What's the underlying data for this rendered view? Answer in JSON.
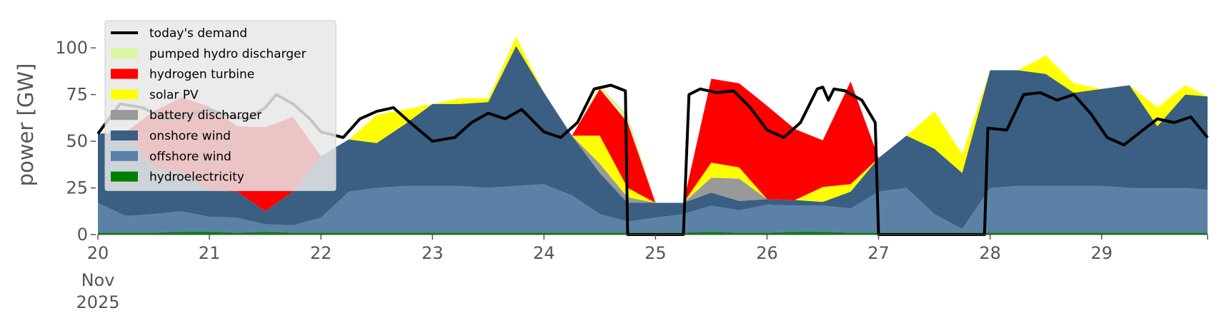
{
  "chart_data": {
    "type": "area",
    "ylabel": "power [GW]",
    "ylim": [
      0,
      118
    ],
    "yticks": [
      "0",
      "25",
      "50",
      "75",
      "100"
    ],
    "xlim": [
      0,
      9.95
    ],
    "xticks": [
      "20",
      "21",
      "22",
      "23",
      "24",
      "25",
      "26",
      "27",
      "28",
      "29"
    ],
    "x_month": "Nov",
    "x_year": "2025",
    "grid": false,
    "legend_position": "top-left",
    "x": [
      0,
      0.25,
      0.5,
      0.75,
      1,
      1.25,
      1.5,
      1.75,
      2,
      2.25,
      2.5,
      2.75,
      3,
      3.25,
      3.5,
      3.75,
      4,
      4.25,
      4.5,
      4.75,
      5,
      5.25,
      5.5,
      5.75,
      6,
      6.25,
      6.5,
      6.75,
      7,
      7.25,
      7.5,
      7.75,
      8,
      8.25,
      8.5,
      8.75,
      9,
      9.25,
      9.5,
      9.75,
      9.95
    ],
    "stack_series": [
      {
        "name": "hydroelectricity",
        "color": "#008000",
        "values": [
          1,
          1,
          1,
          1.5,
          1.5,
          1,
          1.5,
          1,
          1,
          1,
          1,
          1,
          1,
          1,
          1,
          1,
          1,
          1,
          1,
          1,
          1,
          1,
          1.5,
          1,
          1,
          1.5,
          1.5,
          1,
          1,
          1,
          1,
          1,
          1,
          1,
          1,
          1,
          1,
          1,
          1,
          1,
          1
        ]
      },
      {
        "name": "offshore wind",
        "color": "#5b82a6",
        "values": [
          16,
          9,
          10,
          11,
          8,
          8,
          4,
          4,
          8,
          22,
          24,
          25,
          25,
          25,
          24,
          25,
          26,
          20,
          10,
          6,
          8,
          10,
          14,
          12,
          15,
          14,
          14,
          13,
          22,
          24,
          10,
          2,
          24,
          25,
          25,
          25,
          25,
          24,
          24,
          24,
          23
        ]
      },
      {
        "name": "onshore wind",
        "color": "#3a5f82",
        "values": [
          37,
          45,
          25,
          21,
          14,
          14,
          7,
          18,
          33,
          28,
          24,
          33,
          44,
          44,
          46,
          75,
          49,
          32,
          22,
          10,
          8,
          6,
          7,
          5,
          3,
          3,
          2,
          9,
          18,
          28,
          35,
          30,
          63,
          62,
          60,
          50,
          52,
          55,
          33,
          50,
          50
        ]
      },
      {
        "name": "battery discharger",
        "color": "#999999",
        "values": [
          0,
          0,
          0,
          0,
          0,
          0,
          0,
          0,
          0,
          0,
          0,
          0,
          0,
          0,
          0,
          0,
          0,
          0,
          5,
          3,
          0,
          0,
          8,
          12,
          0,
          0,
          0,
          0,
          0,
          0,
          0,
          0,
          0,
          0,
          0,
          0,
          0,
          0,
          0,
          0,
          0
        ]
      },
      {
        "name": "solar PV",
        "color": "#ffff00",
        "values": [
          0,
          0,
          0,
          0,
          0,
          0,
          0,
          0,
          0,
          0,
          15,
          8,
          0,
          3,
          2,
          5,
          0,
          0,
          15,
          5,
          0,
          0,
          8,
          6,
          0,
          0,
          8,
          4,
          0,
          0,
          20,
          10,
          0,
          0,
          10,
          5,
          0,
          0,
          10,
          5,
          0
        ]
      },
      {
        "name": "hydrogen turbine",
        "color": "#ff0000",
        "values": [
          0,
          0,
          30,
          40,
          45,
          35,
          45,
          40,
          0,
          0,
          0,
          0,
          0,
          0,
          0,
          0,
          0,
          0,
          25,
          35,
          0,
          0,
          45,
          45,
          50,
          38,
          25,
          55,
          0,
          0,
          0,
          0,
          0,
          0,
          0,
          0,
          0,
          0,
          0,
          0,
          0
        ]
      },
      {
        "name": "pumped hydro discharger",
        "color": "#d9f7a1",
        "values": [
          0,
          0,
          0,
          0,
          0,
          0,
          0,
          0,
          0,
          0,
          0,
          0,
          0,
          0,
          0,
          0,
          0,
          0,
          2,
          4,
          0,
          0,
          0,
          0,
          0,
          0,
          0,
          0,
          0,
          0,
          0,
          0,
          0,
          0,
          0,
          0,
          0,
          0,
          0,
          0,
          0
        ]
      }
    ],
    "demand_series": {
      "name": "today's demand",
      "color": "#000000",
      "x": [
        0,
        0.2,
        0.4,
        0.6,
        0.8,
        1,
        1.2,
        1.35,
        1.5,
        1.6,
        1.75,
        1.9,
        2,
        2.2,
        2.35,
        2.5,
        2.65,
        2.8,
        3,
        3.2,
        3.35,
        3.5,
        3.65,
        3.8,
        4,
        4.15,
        4.3,
        4.45,
        4.6,
        4.73,
        4.75,
        4.9,
        5,
        5.15,
        5.25,
        5.3,
        5.4,
        5.55,
        5.7,
        5.85,
        6,
        6.15,
        6.3,
        6.45,
        6.5,
        6.55,
        6.6,
        6.7,
        6.85,
        6.97,
        7,
        7.2,
        7.5,
        7.75,
        7.95,
        7.98,
        8.15,
        8.3,
        8.45,
        8.6,
        8.75,
        8.9,
        9.05,
        9.2,
        9.35,
        9.5,
        9.65,
        9.8,
        9.95
      ],
      "values": [
        54,
        70,
        68,
        62,
        64,
        67,
        63,
        62,
        68,
        75,
        70,
        62,
        55,
        52,
        62,
        66,
        68,
        60,
        50,
        52,
        60,
        65,
        62,
        67,
        55,
        52,
        60,
        78,
        80,
        77,
        0,
        0,
        0,
        0,
        0,
        75,
        78,
        76,
        77,
        68,
        56,
        52,
        60,
        78,
        79,
        72,
        78,
        77,
        72,
        60,
        0,
        0,
        0,
        0,
        0,
        57,
        56,
        75,
        76,
        72,
        75,
        65,
        52,
        48,
        55,
        62,
        60,
        63,
        52
      ]
    },
    "shade_band": {
      "x_start": 0,
      "x_end": 1.9,
      "color": "#dcdcdc"
    }
  }
}
